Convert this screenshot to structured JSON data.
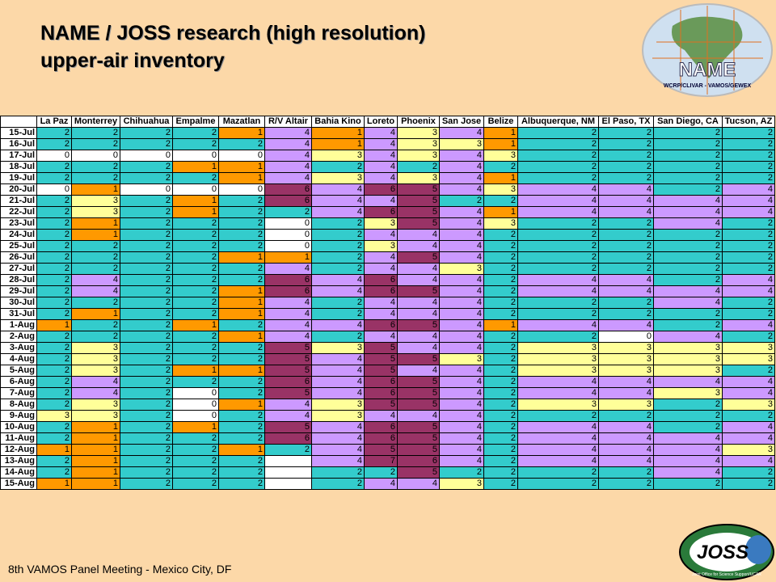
{
  "header": {
    "title_lines": [
      "NAME / JOSS research (high resolution)",
      "upper-air inventory"
    ]
  },
  "logos": {
    "name": {
      "label": "NAME",
      "sub": "WCRP/CLIVAR - VAMOS/GEWEX"
    },
    "joss": {
      "label": "JOSS",
      "sub": "Joint Office for Science Support/UCAR"
    }
  },
  "footer": "8th VAMOS Panel Meeting - Mexico City, DF",
  "table": {
    "columns": [
      "La Paz",
      "Monterrey",
      "Chihuahua",
      "Empalme",
      "Mazatlan",
      "R/V Altair",
      "Bahia Kino",
      "Loreto",
      "Phoenix",
      "San Jose",
      "Belize",
      "Albuquerque, NM",
      "El Paso, TX",
      "San Diego, CA",
      "Tucson, AZ"
    ],
    "rows": [
      {
        "date": "15-Jul",
        "values": [
          2,
          2,
          2,
          2,
          1,
          4,
          1,
          4,
          3,
          4,
          1,
          2,
          2,
          2,
          2
        ]
      },
      {
        "date": "16-Jul",
        "values": [
          2,
          2,
          2,
          2,
          2,
          4,
          1,
          4,
          3,
          3,
          1,
          2,
          2,
          2,
          2
        ]
      },
      {
        "date": "17-Jul",
        "values": [
          0,
          0,
          0,
          0,
          0,
          4,
          3,
          4,
          3,
          4,
          3,
          2,
          2,
          2,
          2
        ]
      },
      {
        "date": "18-Jul",
        "values": [
          2,
          2,
          2,
          1,
          1,
          4,
          2,
          4,
          2,
          4,
          2,
          2,
          2,
          2,
          2
        ]
      },
      {
        "date": "19-Jul",
        "values": [
          2,
          2,
          2,
          2,
          1,
          4,
          3,
          4,
          3,
          4,
          1,
          2,
          2,
          2,
          2
        ]
      },
      {
        "date": "20-Jul",
        "values": [
          0,
          1,
          0,
          0,
          0,
          6,
          4,
          6,
          5,
          4,
          3,
          4,
          4,
          2,
          4
        ]
      },
      {
        "date": "21-Jul",
        "values": [
          2,
          3,
          2,
          1,
          2,
          6,
          4,
          4,
          5,
          2,
          2,
          4,
          4,
          4,
          4
        ]
      },
      {
        "date": "22-Jul",
        "values": [
          2,
          3,
          2,
          1,
          2,
          2,
          4,
          6,
          5,
          4,
          1,
          4,
          4,
          4,
          4
        ]
      },
      {
        "date": "23-Jul",
        "values": [
          2,
          1,
          2,
          2,
          2,
          0,
          2,
          3,
          5,
          4,
          3,
          2,
          2,
          4,
          2
        ]
      },
      {
        "date": "24-Jul",
        "values": [
          2,
          1,
          2,
          2,
          2,
          0,
          2,
          4,
          4,
          4,
          2,
          2,
          2,
          2,
          2
        ]
      },
      {
        "date": "25-Jul",
        "values": [
          2,
          2,
          2,
          2,
          2,
          0,
          2,
          3,
          4,
          4,
          2,
          2,
          2,
          2,
          2
        ]
      },
      {
        "date": "26-Jul",
        "values": [
          2,
          2,
          2,
          2,
          1,
          1,
          2,
          4,
          5,
          4,
          2,
          2,
          2,
          2,
          2
        ]
      },
      {
        "date": "27-Jul",
        "values": [
          2,
          2,
          2,
          2,
          2,
          4,
          2,
          4,
          4,
          3,
          2,
          2,
          2,
          2,
          2
        ]
      },
      {
        "date": "28-Jul",
        "values": [
          2,
          4,
          2,
          2,
          2,
          6,
          4,
          6,
          4,
          4,
          2,
          4,
          4,
          2,
          4
        ]
      },
      {
        "date": "29-Jul",
        "values": [
          2,
          4,
          2,
          2,
          1,
          6,
          4,
          6,
          5,
          4,
          2,
          4,
          4,
          4,
          4
        ]
      },
      {
        "date": "30-Jul",
        "values": [
          2,
          2,
          2,
          2,
          1,
          4,
          2,
          4,
          4,
          4,
          2,
          2,
          2,
          4,
          2
        ]
      },
      {
        "date": "31-Jul",
        "values": [
          2,
          1,
          2,
          2,
          1,
          4,
          2,
          4,
          4,
          4,
          2,
          2,
          2,
          2,
          2
        ]
      },
      {
        "date": "1-Aug",
        "values": [
          1,
          2,
          2,
          1,
          2,
          4,
          4,
          6,
          5,
          4,
          1,
          4,
          4,
          2,
          4
        ]
      },
      {
        "date": "2-Aug",
        "values": [
          2,
          2,
          2,
          2,
          1,
          4,
          2,
          4,
          4,
          4,
          2,
          2,
          0,
          4,
          2
        ]
      },
      {
        "date": "3-Aug",
        "values": [
          2,
          3,
          2,
          2,
          2,
          5,
          3,
          5,
          4,
          4,
          2,
          3,
          3,
          3,
          3
        ]
      },
      {
        "date": "4-Aug",
        "values": [
          2,
          3,
          2,
          2,
          2,
          5,
          4,
          5,
          5,
          3,
          2,
          3,
          3,
          3,
          3
        ]
      },
      {
        "date": "5-Aug",
        "values": [
          2,
          3,
          2,
          1,
          1,
          5,
          4,
          5,
          4,
          4,
          2,
          3,
          3,
          3,
          2
        ]
      },
      {
        "date": "6-Aug",
        "values": [
          2,
          4,
          2,
          2,
          2,
          6,
          4,
          6,
          5,
          4,
          2,
          4,
          4,
          4,
          4
        ]
      },
      {
        "date": "7-Aug",
        "values": [
          2,
          4,
          2,
          0,
          2,
          5,
          4,
          6,
          5,
          4,
          2,
          4,
          4,
          3,
          4
        ]
      },
      {
        "date": "8-Aug",
        "values": [
          2,
          3,
          2,
          0,
          1,
          4,
          3,
          5,
          5,
          4,
          2,
          3,
          3,
          2,
          3
        ]
      },
      {
        "date": "9-Aug",
        "values": [
          3,
          3,
          2,
          0,
          2,
          4,
          3,
          4,
          4,
          4,
          2,
          2,
          2,
          2,
          2
        ]
      },
      {
        "date": "10-Aug",
        "values": [
          2,
          1,
          2,
          1,
          2,
          5,
          4,
          6,
          5,
          4,
          2,
          4,
          4,
          2,
          4
        ]
      },
      {
        "date": "11-Aug",
        "values": [
          2,
          1,
          2,
          2,
          2,
          6,
          4,
          6,
          5,
          4,
          2,
          4,
          4,
          4,
          4
        ]
      },
      {
        "date": "12-Aug",
        "values": [
          1,
          1,
          2,
          2,
          1,
          2,
          4,
          5,
          5,
          4,
          2,
          4,
          4,
          4,
          3
        ]
      },
      {
        "date": "13-Aug",
        "values": [
          2,
          1,
          2,
          2,
          2,
          null,
          4,
          7,
          6,
          4,
          2,
          4,
          4,
          4,
          4
        ]
      },
      {
        "date": "14-Aug",
        "values": [
          2,
          1,
          2,
          2,
          2,
          null,
          2,
          2,
          5,
          2,
          2,
          2,
          2,
          4,
          2
        ]
      },
      {
        "date": "15-Aug",
        "values": [
          1,
          1,
          2,
          2,
          2,
          null,
          2,
          4,
          4,
          3,
          2,
          2,
          2,
          2,
          2
        ]
      }
    ]
  }
}
